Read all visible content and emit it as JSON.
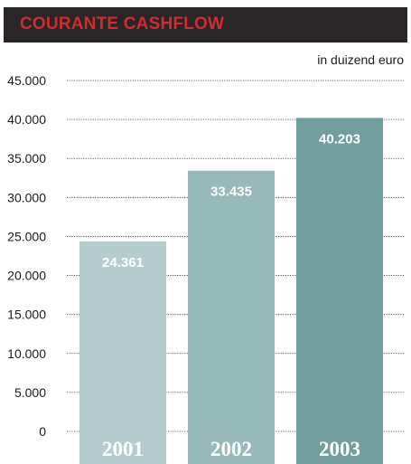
{
  "chart_data": {
    "type": "bar",
    "title": "COURANTE CASHFLOW",
    "unit_label": "in duizend euro",
    "categories": [
      "2001",
      "2002",
      "2003"
    ],
    "values": [
      24361,
      33435,
      40203
    ],
    "value_labels": [
      "24.361",
      "33.435",
      "40.203"
    ],
    "y_ticks": [
      0,
      5000,
      10000,
      15000,
      20000,
      25000,
      30000,
      35000,
      40000,
      45000
    ],
    "y_tick_labels": [
      "0",
      "5.000",
      "10.000",
      "15.000",
      "20.000",
      "25.000",
      "30.000",
      "35.000",
      "40.000",
      "45.000"
    ],
    "ylim": [
      0,
      45000
    ],
    "grid": true,
    "colors": {
      "bars": [
        "#b6cdcf",
        "#98b9ba",
        "#739e9f"
      ],
      "title": "#cf2d34",
      "header": "#2a2526"
    }
  }
}
